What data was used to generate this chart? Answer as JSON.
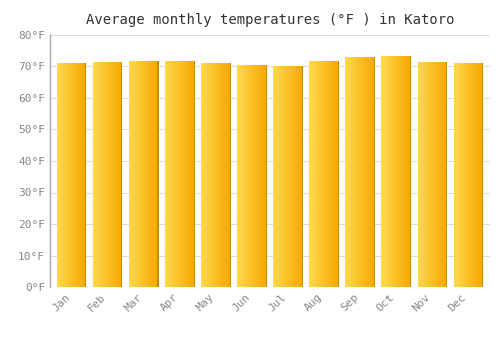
{
  "title": "Average monthly temperatures (°F ) in Katoro",
  "months": [
    "Jan",
    "Feb",
    "Mar",
    "Apr",
    "May",
    "Jun",
    "Jul",
    "Aug",
    "Sep",
    "Oct",
    "Nov",
    "Dec"
  ],
  "values": [
    71,
    71.5,
    71.8,
    71.8,
    71,
    70.5,
    70,
    71.8,
    73,
    73.2,
    71.5,
    71
  ],
  "ylim": [
    0,
    80
  ],
  "yticks": [
    0,
    10,
    20,
    30,
    40,
    50,
    60,
    70,
    80
  ],
  "bar_color_left": "#FFD84D",
  "bar_color_right": "#F5A800",
  "bar_edge_color": "#CC8800",
  "background_color": "#FFFFFF",
  "grid_color": "#DDDDDD",
  "title_fontsize": 10,
  "tick_fontsize": 8,
  "font_color": "#888888",
  "n_gradient_cols": 40
}
